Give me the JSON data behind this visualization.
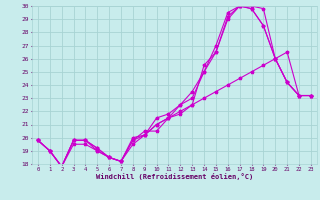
{
  "title": "",
  "xlabel": "Windchill (Refroidissement éolien,°C)",
  "bg_color": "#c8ecec",
  "grid_color": "#a8d4d4",
  "line_color": "#cc00cc",
  "xmin": 0,
  "xmax": 23,
  "ymin": 18,
  "ymax": 30,
  "yticks": [
    18,
    19,
    20,
    21,
    22,
    23,
    24,
    25,
    26,
    27,
    28,
    29,
    30
  ],
  "xtick_labels": [
    "0",
    "1",
    "2",
    "3",
    "4",
    "5",
    "6",
    "7",
    "8",
    "9",
    "10",
    "11",
    "12",
    "13",
    "14",
    "15",
    "16",
    "17",
    "18",
    "19",
    "20",
    "21",
    "22",
    "23"
  ],
  "series": [
    [
      19.8,
      19.0,
      17.8,
      19.8,
      19.8,
      19.0,
      18.5,
      18.2,
      19.5,
      20.2,
      21.0,
      21.5,
      21.8,
      22.5,
      23.0,
      23.5,
      24.0,
      24.5,
      25.0,
      25.5,
      26.0,
      26.5,
      23.2,
      23.2
    ],
    [
      19.8,
      19.0,
      17.8,
      19.8,
      19.8,
      19.2,
      18.5,
      18.2,
      19.8,
      20.5,
      20.5,
      21.5,
      22.5,
      23.0,
      25.0,
      26.5,
      29.2,
      30.0,
      29.8,
      28.5,
      26.0,
      24.2,
      23.2,
      23.2
    ],
    [
      19.8,
      19.0,
      17.8,
      19.5,
      19.5,
      19.0,
      18.5,
      18.2,
      20.0,
      20.2,
      21.5,
      21.8,
      22.5,
      23.5,
      25.0,
      27.0,
      29.5,
      30.0,
      30.0,
      29.8,
      26.0,
      24.2,
      23.2,
      23.2
    ],
    [
      19.8,
      19.0,
      17.8,
      19.8,
      19.8,
      19.2,
      18.5,
      18.2,
      19.8,
      20.2,
      21.0,
      21.5,
      22.0,
      22.5,
      25.5,
      26.5,
      29.0,
      30.0,
      29.8,
      28.5,
      26.0,
      24.2,
      23.2,
      23.2
    ]
  ]
}
